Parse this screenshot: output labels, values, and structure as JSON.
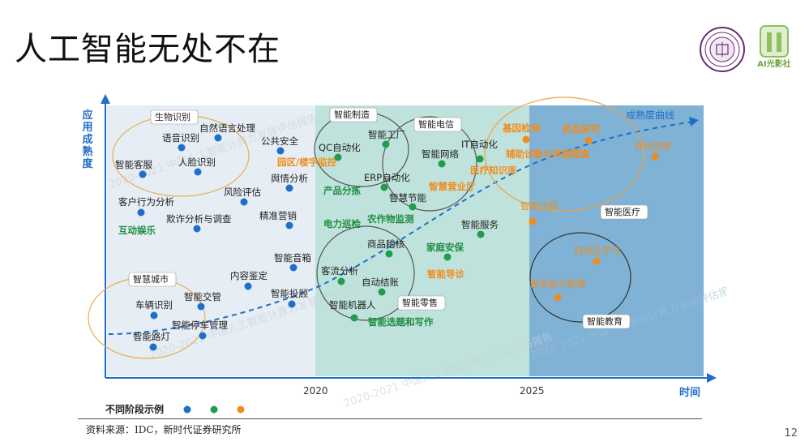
{
  "slide": {
    "title": "人工智能无处不在",
    "page_number": "12",
    "source": "资料来源：IDC，新时代证券研究所",
    "seal_icon": "university-seal-icon",
    "logo_icon": "ai-logo-icon",
    "logo_text": "AI光影社"
  },
  "chart": {
    "y_axis_label": "应用成熟度",
    "x_axis_label": "时间",
    "x_ticks": [
      "2020",
      "2025"
    ],
    "curve_label": "成熟度曲线",
    "legend_label": "不同阶段示例",
    "stage_colors": [
      "#1f6fc9",
      "#1e9e4a",
      "#f08c1e"
    ],
    "zone_colors": [
      "#e6edf5",
      "#bfe3dc",
      "#7fb2d4"
    ],
    "watermark": "2020-2021 中国人工智能计算力发展评估报告",
    "circle_labels": [
      {
        "text": "生物识别"
      },
      {
        "text": "智慧城市"
      },
      {
        "text": "智能制造"
      },
      {
        "text": "智能电信"
      },
      {
        "text": "智能零售"
      },
      {
        "text": "智能医疗"
      },
      {
        "text": "智能教育"
      }
    ],
    "items": [
      {
        "text": "自然语言处理",
        "stage": 0
      },
      {
        "text": "语音识别",
        "stage": 0
      },
      {
        "text": "公共安全",
        "stage": 0
      },
      {
        "text": "智能客服",
        "stage": 0
      },
      {
        "text": "人脸识别",
        "stage": 0
      },
      {
        "text": "舆情分析",
        "stage": 0
      },
      {
        "text": "风险评估",
        "stage": 0
      },
      {
        "text": "客户行为分析",
        "stage": 0
      },
      {
        "text": "欺诈分析与调查",
        "stage": 0
      },
      {
        "text": "精准营销",
        "stage": 0
      },
      {
        "text": "互动娱乐",
        "stage": 1
      },
      {
        "text": "智能音箱",
        "stage": 0
      },
      {
        "text": "内容鉴定",
        "stage": 0
      },
      {
        "text": "智能交管",
        "stage": 0
      },
      {
        "text": "智能投顾",
        "stage": 0
      },
      {
        "text": "车辆识别",
        "stage": 0
      },
      {
        "text": "智能停车管理",
        "stage": 0
      },
      {
        "text": "智能路灯",
        "stage": 0
      },
      {
        "text": "园区/楼宇监控",
        "stage": 2
      },
      {
        "text": "智能工厂",
        "stage": 1
      },
      {
        "text": "QC自动化",
        "stage": 1
      },
      {
        "text": "ERP自动化",
        "stage": 1
      },
      {
        "text": "产品分拣",
        "stage": 1
      },
      {
        "text": "智能网络",
        "stage": 1
      },
      {
        "text": "IT自动化",
        "stage": 1
      },
      {
        "text": "智慧节能",
        "stage": 1
      },
      {
        "text": "智慧营业厅",
        "stage": 2
      },
      {
        "text": "电力巡检",
        "stage": 1
      },
      {
        "text": "农作物监测",
        "stage": 1
      },
      {
        "text": "智能服务",
        "stage": 1
      },
      {
        "text": "商品稽核",
        "stage": 1
      },
      {
        "text": "家庭安保",
        "stage": 1
      },
      {
        "text": "客流分析",
        "stage": 1
      },
      {
        "text": "智能导诊",
        "stage": 2
      },
      {
        "text": "自动结账",
        "stage": 1
      },
      {
        "text": "智能机器人",
        "stage": 1
      },
      {
        "text": "智能选题和写作",
        "stage": 1
      },
      {
        "text": "基因检测",
        "stage": 2
      },
      {
        "text": "药品研究",
        "stage": 2
      },
      {
        "text": "辅助诊断与早期筛查",
        "stage": 2
      },
      {
        "text": "医疗知识库",
        "stage": 2
      },
      {
        "text": "自动驾驶",
        "stage": 2
      },
      {
        "text": "智能诊断",
        "stage": 2
      },
      {
        "text": "自适应学习",
        "stage": 2
      },
      {
        "text": "语言能力管理",
        "stage": 2
      }
    ]
  }
}
